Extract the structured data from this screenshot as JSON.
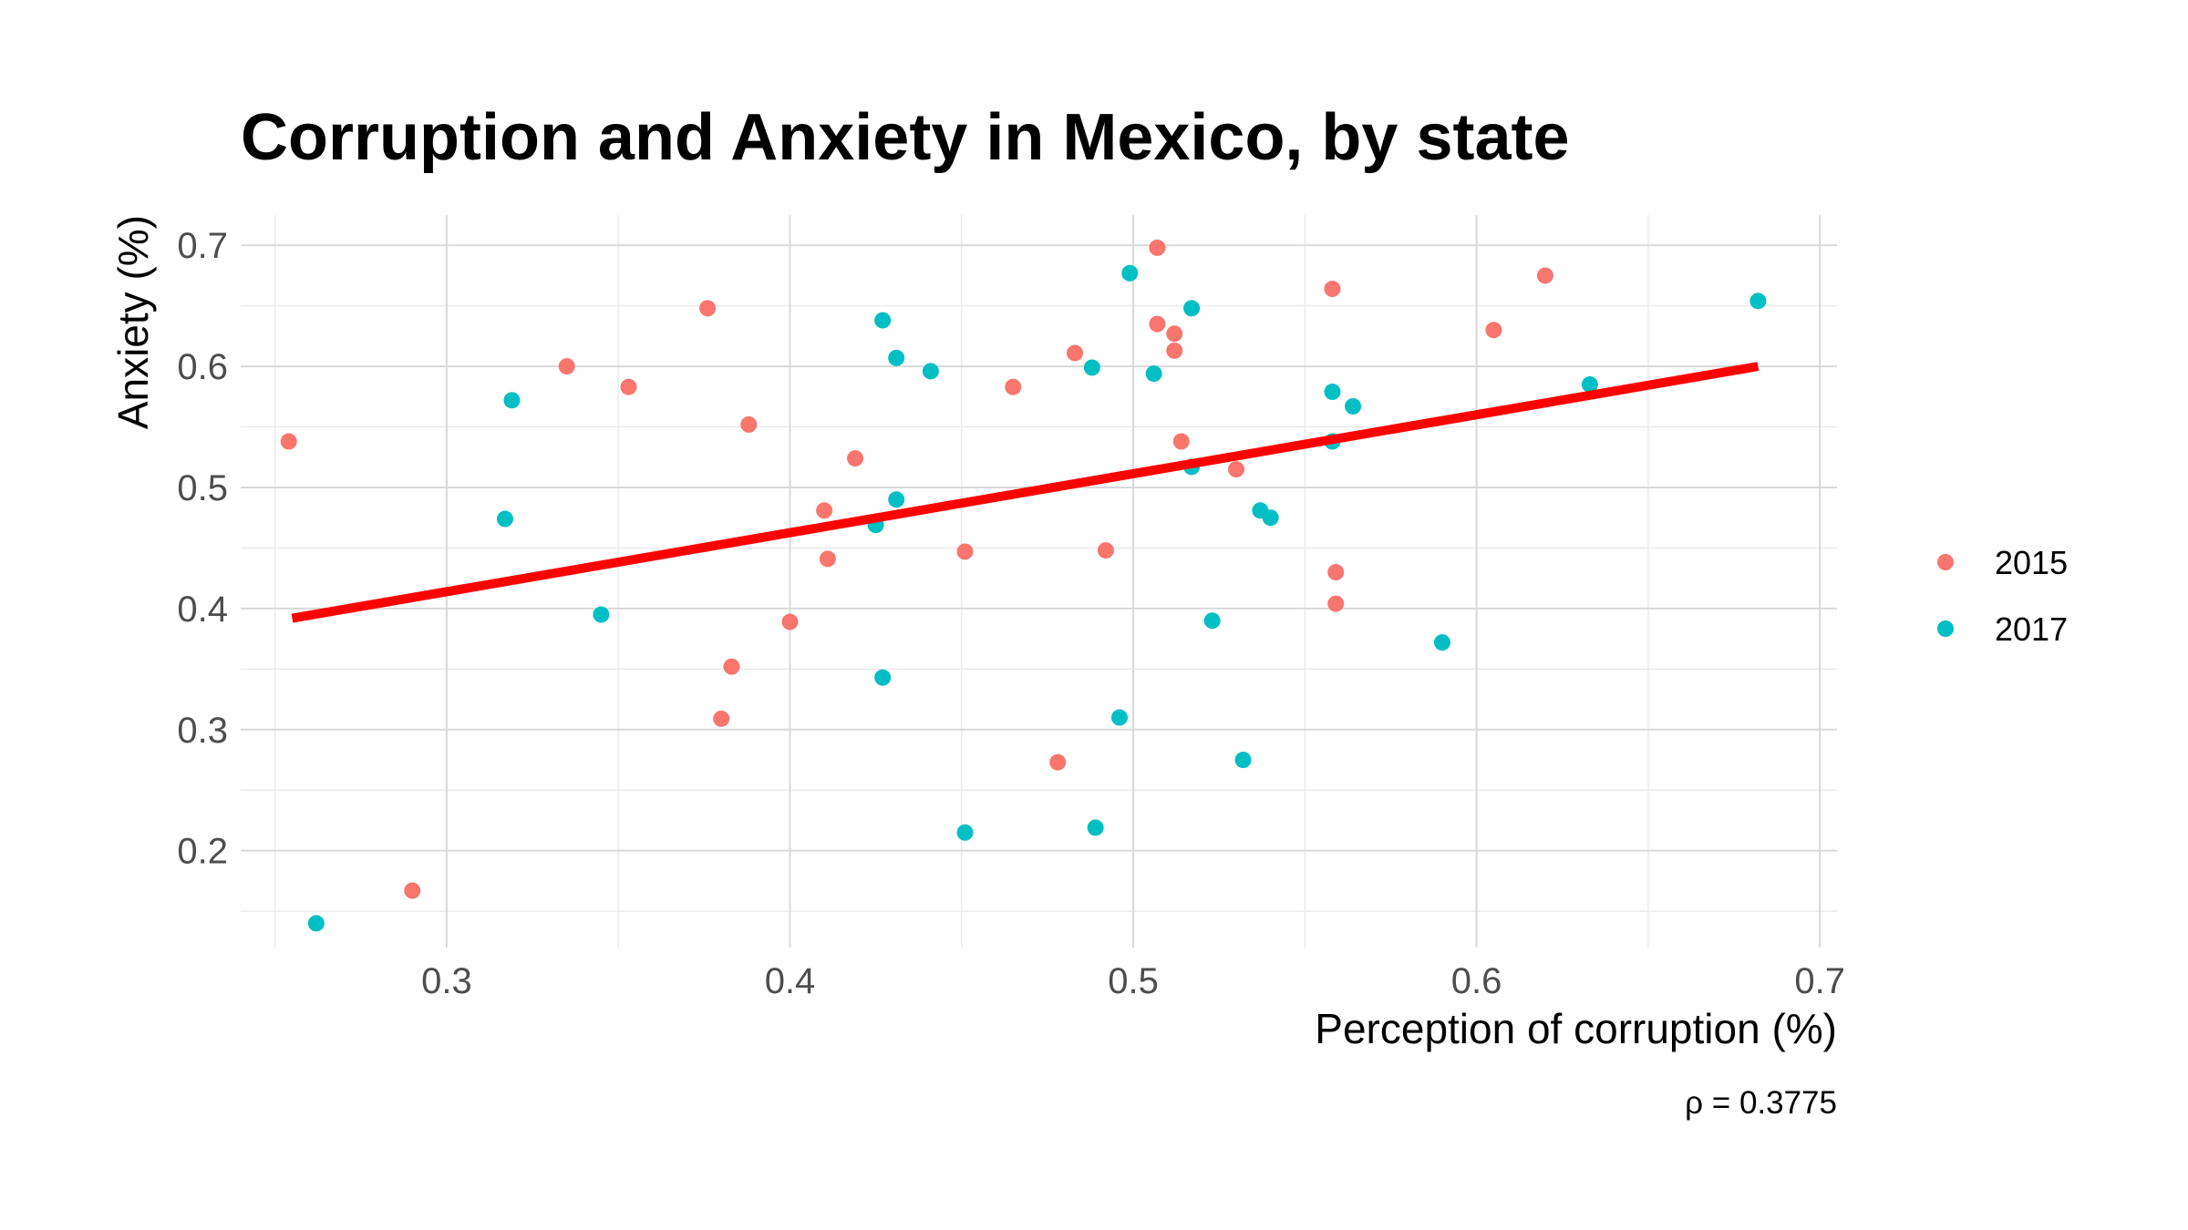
{
  "chart_data": {
    "type": "scatter",
    "title": "Corruption and Anxiety in Mexico, by state",
    "xlabel": "Perception of corruption (%)",
    "ylabel": "Anxiety (%)",
    "caption": "ρ = 0.3775",
    "xlim": [
      0.24,
      0.705
    ],
    "ylim": [
      0.12,
      0.725
    ],
    "x_ticks": [
      0.3,
      0.4,
      0.5,
      0.6,
      0.7
    ],
    "x_tick_labels": [
      "0.3",
      "0.4",
      "0.5",
      "0.6",
      "0.7"
    ],
    "y_ticks": [
      0.2,
      0.3,
      0.4,
      0.5,
      0.6,
      0.7
    ],
    "y_tick_labels": [
      "0.2",
      "0.3",
      "0.4",
      "0.5",
      "0.6",
      "0.7"
    ],
    "grid": true,
    "legend_position": "right",
    "trend_line": {
      "x": [
        0.255,
        0.682
      ],
      "y": [
        0.392,
        0.6
      ],
      "color": "#ff0000"
    },
    "series": [
      {
        "name": "2015",
        "color": "#F8766D",
        "points": [
          [
            0.254,
            0.538
          ],
          [
            0.29,
            0.167
          ],
          [
            0.335,
            0.6
          ],
          [
            0.353,
            0.583
          ],
          [
            0.376,
            0.648
          ],
          [
            0.38,
            0.309
          ],
          [
            0.383,
            0.352
          ],
          [
            0.388,
            0.552
          ],
          [
            0.4,
            0.389
          ],
          [
            0.41,
            0.481
          ],
          [
            0.411,
            0.441
          ],
          [
            0.419,
            0.524
          ],
          [
            0.451,
            0.447
          ],
          [
            0.465,
            0.583
          ],
          [
            0.478,
            0.273
          ],
          [
            0.483,
            0.611
          ],
          [
            0.492,
            0.448
          ],
          [
            0.507,
            0.698
          ],
          [
            0.507,
            0.635
          ],
          [
            0.512,
            0.627
          ],
          [
            0.512,
            0.613
          ],
          [
            0.514,
            0.538
          ],
          [
            0.53,
            0.515
          ],
          [
            0.558,
            0.664
          ],
          [
            0.559,
            0.43
          ],
          [
            0.559,
            0.404
          ],
          [
            0.605,
            0.63
          ],
          [
            0.62,
            0.675
          ]
        ]
      },
      {
        "name": "2017",
        "color": "#00BFC4",
        "points": [
          [
            0.262,
            0.14
          ],
          [
            0.317,
            0.474
          ],
          [
            0.319,
            0.572
          ],
          [
            0.345,
            0.395
          ],
          [
            0.425,
            0.469
          ],
          [
            0.427,
            0.638
          ],
          [
            0.427,
            0.343
          ],
          [
            0.431,
            0.607
          ],
          [
            0.431,
            0.49
          ],
          [
            0.441,
            0.596
          ],
          [
            0.451,
            0.215
          ],
          [
            0.488,
            0.599
          ],
          [
            0.489,
            0.219
          ],
          [
            0.496,
            0.31
          ],
          [
            0.499,
            0.677
          ],
          [
            0.506,
            0.594
          ],
          [
            0.517,
            0.648
          ],
          [
            0.517,
            0.517
          ],
          [
            0.523,
            0.39
          ],
          [
            0.532,
            0.275
          ],
          [
            0.537,
            0.481
          ],
          [
            0.54,
            0.475
          ],
          [
            0.558,
            0.579
          ],
          [
            0.558,
            0.538
          ],
          [
            0.564,
            0.567
          ],
          [
            0.59,
            0.372
          ],
          [
            0.633,
            0.585
          ],
          [
            0.682,
            0.654
          ]
        ]
      }
    ]
  }
}
